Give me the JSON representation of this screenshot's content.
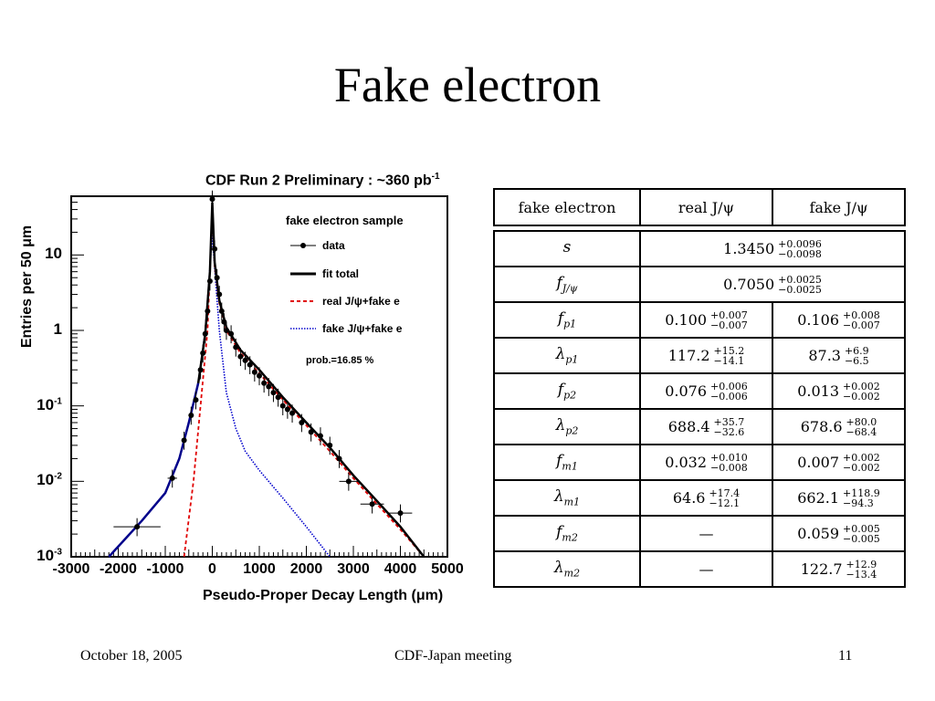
{
  "slide": {
    "title": "Fake electron",
    "footer_left": "October 18, 2005",
    "footer_center": "CDF-Japan meeting",
    "footer_right": "11"
  },
  "chart_data": {
    "type": "scatter",
    "title": "CDF Run 2 Preliminary : ~360 pb",
    "title_sup": "-1",
    "xlabel": "Pseudo-Proper Decay Length (μm)",
    "ylabel": "Entries per 50 μm",
    "xlim": [
      -3000,
      5000
    ],
    "ylim": [
      0.001,
      60
    ],
    "yscale": "log",
    "xticks": [
      "-3000",
      "-2000",
      "-1000",
      "0",
      "1000",
      "2000",
      "3000",
      "4000",
      "5000"
    ],
    "yticks": [
      {
        "base": "10",
        "exp": "-3",
        "value": 0.001
      },
      {
        "base": "10",
        "exp": "-2",
        "value": 0.01
      },
      {
        "base": "10",
        "exp": "-1",
        "value": 0.1
      },
      {
        "base": "1",
        "exp": "",
        "value": 1
      },
      {
        "base": "10",
        "exp": "",
        "value": 10
      }
    ],
    "legend": {
      "title": "fake electron sample",
      "position": "top-right",
      "entries": [
        {
          "label": "data",
          "style": "marker-line",
          "color": "#000000"
        },
        {
          "label": "fit total",
          "style": "solid",
          "color": "#000000"
        },
        {
          "label": "real J/ψ+fake e",
          "style": "dashed",
          "color": "#e00000"
        },
        {
          "label": "fake J/ψ+fake e",
          "style": "dotted",
          "color": "#0000cc"
        }
      ],
      "note": "prob.=16.85 %"
    },
    "series": [
      {
        "name": "data",
        "points": [
          [
            -1600,
            0.0025,
            500
          ],
          [
            -850,
            0.011,
            100
          ],
          [
            -600,
            0.035,
            50
          ],
          [
            -450,
            0.075,
            25
          ],
          [
            -350,
            0.12,
            25
          ],
          [
            -250,
            0.3,
            25
          ],
          [
            -200,
            0.5,
            25
          ],
          [
            -150,
            0.9,
            25
          ],
          [
            -100,
            1.8,
            25
          ],
          [
            -50,
            4.5,
            25
          ],
          [
            0,
            55,
            25
          ],
          [
            50,
            12,
            25
          ],
          [
            100,
            5,
            25
          ],
          [
            150,
            3,
            25
          ],
          [
            200,
            1.8,
            25
          ],
          [
            250,
            1.3,
            25
          ],
          [
            300,
            1.0,
            25
          ],
          [
            400,
            0.9,
            25
          ],
          [
            500,
            0.6,
            25
          ],
          [
            600,
            0.45,
            25
          ],
          [
            700,
            0.4,
            25
          ],
          [
            800,
            0.35,
            25
          ],
          [
            900,
            0.28,
            25
          ],
          [
            1000,
            0.25,
            25
          ],
          [
            1100,
            0.2,
            25
          ],
          [
            1200,
            0.18,
            25
          ],
          [
            1300,
            0.15,
            25
          ],
          [
            1400,
            0.13,
            25
          ],
          [
            1500,
            0.1,
            25
          ],
          [
            1600,
            0.09,
            25
          ],
          [
            1700,
            0.08,
            25
          ],
          [
            1900,
            0.06,
            25
          ],
          [
            2100,
            0.045,
            25
          ],
          [
            2300,
            0.04,
            25
          ],
          [
            2500,
            0.03,
            25
          ],
          [
            2700,
            0.02,
            25
          ],
          [
            2900,
            0.01,
            200
          ],
          [
            3400,
            0.005,
            250
          ],
          [
            4000,
            0.0038,
            250
          ]
        ]
      },
      {
        "name": "fit total",
        "points": [
          [
            -2200,
            0.001
          ],
          [
            -1500,
            0.003
          ],
          [
            -1000,
            0.007
          ],
          [
            -700,
            0.02
          ],
          [
            -500,
            0.06
          ],
          [
            -300,
            0.2
          ],
          [
            -150,
            0.9
          ],
          [
            -50,
            6
          ],
          [
            0,
            50
          ],
          [
            50,
            8
          ],
          [
            150,
            2.5
          ],
          [
            300,
            1.1
          ],
          [
            600,
            0.55
          ],
          [
            1000,
            0.3
          ],
          [
            1500,
            0.13
          ],
          [
            2000,
            0.06
          ],
          [
            2500,
            0.028
          ],
          [
            3000,
            0.012
          ],
          [
            3500,
            0.0055
          ],
          [
            4000,
            0.0025
          ],
          [
            4500,
            0.001
          ]
        ]
      },
      {
        "name": "real J/ψ+fake e",
        "points": [
          [
            -600,
            0.001
          ],
          [
            -400,
            0.01
          ],
          [
            -250,
            0.1
          ],
          [
            -100,
            1
          ],
          [
            0,
            40
          ],
          [
            50,
            7
          ],
          [
            150,
            2.3
          ],
          [
            300,
            1.0
          ],
          [
            600,
            0.5
          ],
          [
            1000,
            0.27
          ],
          [
            1500,
            0.12
          ],
          [
            2000,
            0.055
          ],
          [
            2500,
            0.025
          ],
          [
            3000,
            0.011
          ],
          [
            3500,
            0.005
          ],
          [
            4000,
            0.0023
          ],
          [
            4500,
            0.001
          ]
        ]
      },
      {
        "name": "fake J/ψ+fake e",
        "points": [
          [
            -2200,
            0.001
          ],
          [
            -1500,
            0.003
          ],
          [
            -1000,
            0.007
          ],
          [
            -700,
            0.02
          ],
          [
            -500,
            0.06
          ],
          [
            -300,
            0.2
          ],
          [
            -150,
            1
          ],
          [
            0,
            18
          ],
          [
            150,
            1
          ],
          [
            300,
            0.15
          ],
          [
            500,
            0.05
          ],
          [
            700,
            0.025
          ],
          [
            1000,
            0.014
          ],
          [
            1500,
            0.006
          ],
          [
            2000,
            0.0025
          ],
          [
            2500,
            0.001
          ]
        ]
      }
    ]
  },
  "table": {
    "headers": [
      "fake electron",
      "real J/ψ",
      "fake J/ψ"
    ],
    "rows": [
      {
        "param": "s",
        "sub": "",
        "merged": true,
        "real": {
          "v": "1.3450",
          "up": "+0.0096",
          "dn": "−0.0098"
        }
      },
      {
        "param": "f",
        "sub": "J/ψ",
        "merged": true,
        "real": {
          "v": "0.7050",
          "up": "+0.0025",
          "dn": "−0.0025"
        }
      },
      {
        "param": "f",
        "sub": "p1",
        "real": {
          "v": "0.100",
          "up": "+0.007",
          "dn": "−0.007"
        },
        "fake": {
          "v": "0.106",
          "up": "+0.008",
          "dn": "−0.007"
        }
      },
      {
        "param": "λ",
        "sub": "p1",
        "real": {
          "v": "117.2",
          "up": "+15.2",
          "dn": "−14.1"
        },
        "fake": {
          "v": "87.3",
          "up": "+6.9",
          "dn": "−6.5"
        }
      },
      {
        "param": "f",
        "sub": "p2",
        "real": {
          "v": "0.076",
          "up": "+0.006",
          "dn": "−0.006"
        },
        "fake": {
          "v": "0.013",
          "up": "+0.002",
          "dn": "−0.002"
        }
      },
      {
        "param": "λ",
        "sub": "p2",
        "real": {
          "v": "688.4",
          "up": "+35.7",
          "dn": "−32.6"
        },
        "fake": {
          "v": "678.6",
          "up": "+80.0",
          "dn": "−68.4"
        }
      },
      {
        "param": "f",
        "sub": "m1",
        "real": {
          "v": "0.032",
          "up": "+0.010",
          "dn": "−0.008"
        },
        "fake": {
          "v": "0.007",
          "up": "+0.002",
          "dn": "−0.002"
        }
      },
      {
        "param": "λ",
        "sub": "m1",
        "real": {
          "v": "64.6",
          "up": "+17.4",
          "dn": "−12.1"
        },
        "fake": {
          "v": "662.1",
          "up": "+118.9",
          "dn": "−94.3"
        }
      },
      {
        "param": "f",
        "sub": "m2",
        "real": {
          "dash": "—"
        },
        "fake": {
          "v": "0.059",
          "up": "+0.005",
          "dn": "−0.005"
        }
      },
      {
        "param": "λ",
        "sub": "m2",
        "real": {
          "dash": "—"
        },
        "fake": {
          "v": "122.7",
          "up": "+12.9",
          "dn": "−13.4"
        }
      }
    ]
  }
}
